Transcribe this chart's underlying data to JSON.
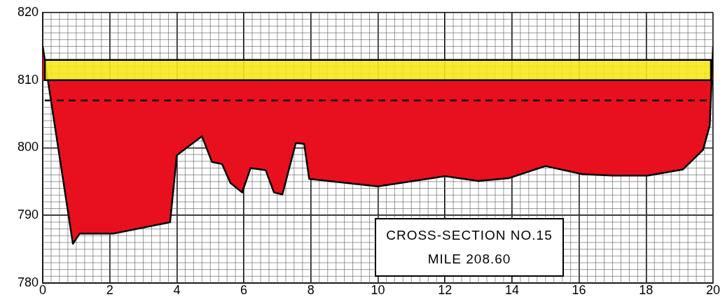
{
  "chart_data": {
    "type": "area",
    "x": [
      0,
      0.9,
      1.1,
      2.1,
      3.8,
      4.0,
      4.75,
      5.05,
      5.35,
      5.6,
      5.95,
      6.2,
      6.65,
      6.9,
      7.15,
      7.55,
      7.8,
      7.95,
      10.0,
      12.0,
      13.0,
      13.9,
      15.0,
      16.1,
      17.0,
      18.05,
      19.1,
      19.7,
      19.9,
      20
    ],
    "series": [
      {
        "color": "#e8101e",
        "values": [
          815,
          785.8,
          787.3,
          787.3,
          789,
          798.9,
          801.7,
          797.9,
          797.6,
          794.8,
          793.4,
          797,
          796.7,
          793.4,
          793.1,
          800.7,
          800.6,
          795.4,
          794.3,
          795.8,
          795.1,
          795.5,
          797.3,
          796.1,
          795.9,
          795.9,
          796.8,
          799.7,
          803.3,
          815
        ]
      }
    ],
    "xlim": [
      0,
      20
    ],
    "xticks": [
      0,
      2,
      4,
      6,
      8,
      10,
      12,
      14,
      16,
      18,
      20
    ],
    "ylim": [
      780,
      820
    ],
    "yticks": [
      780,
      790,
      800,
      810,
      820
    ],
    "grid": true,
    "ref_lines": [
      {
        "axis": "y",
        "value": 807,
        "color": "#000000",
        "line_style": "dashed"
      }
    ],
    "bands": [
      {
        "axis": "y",
        "from": 810,
        "to": 813,
        "color": "#f5e81c"
      }
    ],
    "annotations": [
      "CROSS-SECTION NO.15",
      "MILE 208.60"
    ]
  }
}
